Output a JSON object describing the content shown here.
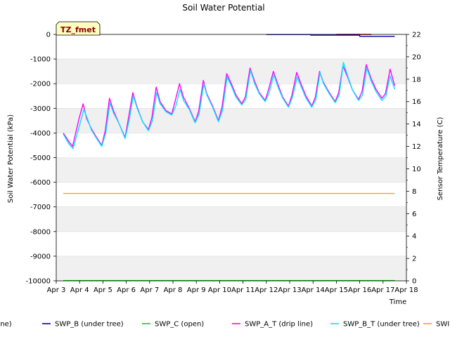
{
  "chart_data": {
    "type": "line",
    "title": "Soil Water Potential",
    "badge": "TZ_fmet",
    "xlabel": "Time",
    "ylabel": "Soil Water Potential (kPa)",
    "y2label": "Sensor Temperature (C)",
    "ylim": [
      -10000,
      0
    ],
    "y2lim": [
      0,
      22
    ],
    "xlim": [
      0,
      15
    ],
    "categories": [
      "Apr 3",
      "Apr 4",
      "Apr 5",
      "Apr 6",
      "Apr 7",
      "Apr 8",
      "Apr 9",
      "Apr 10",
      "Apr 11",
      "Apr 12",
      "Apr 13",
      "Apr 14",
      "Apr 15",
      "Apr 16",
      "Apr 17",
      "Apr 18"
    ],
    "yticks": [
      0,
      -1000,
      -2000,
      -3000,
      -4000,
      -5000,
      -6000,
      -7000,
      -8000,
      -9000,
      -10000
    ],
    "y2ticks": [
      0,
      2,
      4,
      6,
      8,
      10,
      12,
      14,
      16,
      18,
      20,
      22
    ],
    "colors": {
      "band": "#f0f0f0",
      "grid": "#dcdcdc"
    },
    "series": [
      {
        "name": "SWP_A (drip line)",
        "legend": "drip line)",
        "axis": "left",
        "color": "#cc0000",
        "x": [
          12.0,
          13.5
        ],
        "values": [
          0,
          0
        ]
      },
      {
        "name": "SWP_B (under tree)",
        "legend": "SWP_B (under tree)",
        "axis": "left",
        "color": "#0000aa",
        "x": [
          9.0,
          10.9,
          10.9,
          13.0,
          13.0,
          14.5
        ],
        "values": [
          -5,
          -5,
          -30,
          -30,
          -80,
          -80
        ]
      },
      {
        "name": "SWP_C (open)",
        "legend": "SWP_C (open)",
        "axis": "left",
        "color": "#00dd00",
        "x": [
          0.3,
          14.5
        ],
        "values": [
          -9990,
          -9990
        ]
      },
      {
        "name": "SWP_A_T (drip line)",
        "legend": "SWP_A_T (drip line)",
        "axis": "right",
        "color": "#ff00ff",
        "x": [
          0.3,
          0.55,
          0.7,
          0.98,
          1.15,
          1.3,
          1.5,
          1.7,
          1.95,
          2.1,
          2.28,
          2.45,
          2.7,
          2.95,
          3.1,
          3.28,
          3.45,
          3.7,
          3.95,
          4.1,
          4.28,
          4.45,
          4.7,
          4.95,
          5.1,
          5.28,
          5.45,
          5.7,
          5.95,
          6.1,
          6.3,
          6.45,
          6.7,
          6.95,
          7.1,
          7.3,
          7.5,
          7.7,
          7.95,
          8.1,
          8.3,
          8.5,
          8.7,
          8.95,
          9.1,
          9.3,
          9.5,
          9.7,
          9.95,
          10.1,
          10.3,
          10.5,
          10.7,
          10.95,
          11.1,
          11.28,
          11.45,
          11.7,
          11.95,
          12.1,
          12.28,
          12.5,
          12.7,
          12.95,
          13.1,
          13.28,
          13.5,
          13.7,
          13.95,
          14.1,
          14.3,
          14.5
        ],
        "values": [
          13.2,
          12.4,
          12.0,
          14.5,
          15.8,
          14.5,
          13.6,
          12.9,
          12.1,
          13.4,
          16.3,
          15.2,
          14.0,
          12.8,
          14.6,
          16.8,
          15.6,
          14.2,
          13.5,
          14.6,
          17.3,
          16.0,
          15.2,
          14.9,
          16.1,
          17.6,
          16.4,
          15.4,
          14.2,
          15.1,
          17.9,
          16.7,
          15.6,
          14.3,
          15.5,
          18.5,
          17.6,
          16.6,
          15.8,
          16.4,
          19.0,
          17.8,
          16.8,
          16.1,
          17.1,
          18.7,
          17.5,
          16.4,
          15.6,
          16.6,
          18.6,
          17.5,
          16.5,
          15.6,
          16.4,
          18.7,
          17.7,
          16.8,
          16.0,
          16.8,
          19.2,
          18.1,
          17.0,
          16.2,
          16.9,
          19.3,
          18.0,
          17.1,
          16.3,
          16.7,
          18.9,
          17.4
        ]
      },
      {
        "name": "SWP_B_T (under tree)",
        "legend": "SWP_B_T (under tree)",
        "axis": "right",
        "color": "#00e5ff",
        "x": [
          0.3,
          0.55,
          0.72,
          1.0,
          1.18,
          1.35,
          1.5,
          1.7,
          1.95,
          2.12,
          2.3,
          2.45,
          2.7,
          2.95,
          3.12,
          3.3,
          3.45,
          3.7,
          3.95,
          4.12,
          4.3,
          4.45,
          4.7,
          4.95,
          5.12,
          5.3,
          5.45,
          5.7,
          5.95,
          6.12,
          6.32,
          6.45,
          6.7,
          6.95,
          7.12,
          7.32,
          7.5,
          7.7,
          7.95,
          8.12,
          8.32,
          8.5,
          8.7,
          8.95,
          9.12,
          9.32,
          9.5,
          9.7,
          9.95,
          10.12,
          10.32,
          10.5,
          10.7,
          10.95,
          11.12,
          11.3,
          11.45,
          11.7,
          11.95,
          12.12,
          12.3,
          12.5,
          12.7,
          12.95,
          13.12,
          13.3,
          13.5,
          13.7,
          13.95,
          14.12,
          14.3,
          14.5
        ],
        "values": [
          13.1,
          12.2,
          11.8,
          13.9,
          15.3,
          14.4,
          13.5,
          12.8,
          12.0,
          13.2,
          15.9,
          15.0,
          14.0,
          12.7,
          14.3,
          16.5,
          15.5,
          14.2,
          13.4,
          14.3,
          16.8,
          15.8,
          15.1,
          14.8,
          15.6,
          17.1,
          16.1,
          15.3,
          14.1,
          14.9,
          17.6,
          16.6,
          15.5,
          14.2,
          15.2,
          18.2,
          17.4,
          16.4,
          15.7,
          16.2,
          18.8,
          17.6,
          16.7,
          16.0,
          16.8,
          18.4,
          17.3,
          16.3,
          15.5,
          16.4,
          18.2,
          17.3,
          16.3,
          15.5,
          16.2,
          18.6,
          17.6,
          16.7,
          15.9,
          16.6,
          19.5,
          18.2,
          17.0,
          16.1,
          16.6,
          19.0,
          17.8,
          16.9,
          16.1,
          16.5,
          18.3,
          17.1
        ]
      },
      {
        "name": "SWP_C_T (open)",
        "legend": "SWI",
        "axis": "right",
        "color": "#ffa500",
        "x": [
          0.3,
          14.5
        ],
        "values": [
          7.8,
          7.8
        ]
      }
    ]
  }
}
